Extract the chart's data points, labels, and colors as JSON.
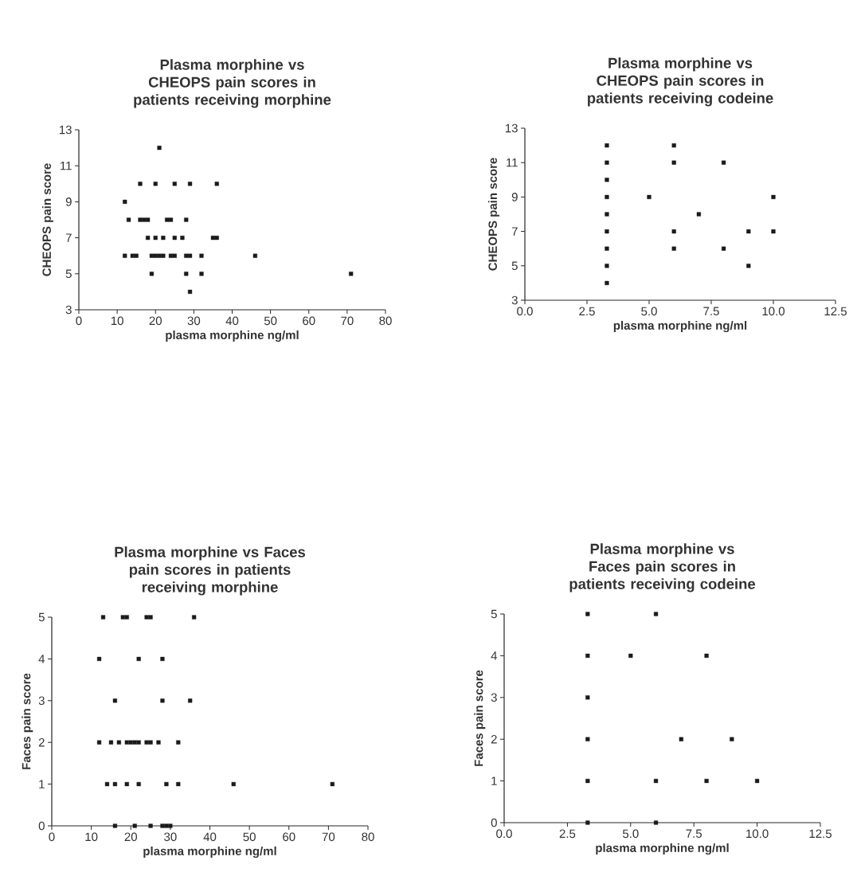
{
  "chart_data": [
    {
      "type": "scatter",
      "title": "Plasma morphine vs CHEOPS pain scores in patients receiving morphine",
      "xlabel": "plasma morphine ng/ml",
      "ylabel": "CHEOPS pain score",
      "marker": "square",
      "color": "#1a1a1a",
      "xlim": [
        0,
        80
      ],
      "ylim": [
        3,
        13
      ],
      "xticks": [
        0,
        10,
        20,
        30,
        40,
        50,
        60,
        70,
        80
      ],
      "yticks": [
        3,
        5,
        7,
        9,
        11,
        13
      ],
      "x": [
        21,
        16,
        20,
        25,
        29,
        36,
        12,
        13,
        16,
        17,
        18,
        23,
        24,
        28,
        18,
        20,
        22,
        25,
        27,
        35,
        36,
        12,
        14,
        15,
        19,
        20,
        21,
        22,
        24,
        25,
        28,
        29,
        32,
        46,
        19,
        28,
        32,
        71,
        29
      ],
      "values": [
        12,
        10,
        10,
        10,
        10,
        10,
        9,
        8,
        8,
        8,
        8,
        8,
        8,
        8,
        7,
        7,
        7,
        7,
        7,
        7,
        7,
        6,
        6,
        6,
        6,
        6,
        6,
        6,
        6,
        6,
        6,
        6,
        6,
        6,
        5,
        5,
        5,
        5,
        4
      ]
    },
    {
      "type": "scatter",
      "title": "Plasma morphine vs CHEOPS pain scores in patients receiving codeine",
      "xlabel": "plasma morphine ng/ml",
      "ylabel": "CHEOPS pain score",
      "marker": "square",
      "color": "#1a1a1a",
      "xlim": [
        0,
        12.5
      ],
      "ylim": [
        3,
        13
      ],
      "xticks": [
        {
          "value": 0,
          "label": "0.0"
        },
        {
          "value": 2.5,
          "label": "2.5"
        },
        {
          "value": 5,
          "label": "5.0"
        },
        {
          "value": 7.5,
          "label": "7.5"
        },
        {
          "value": 10,
          "label": "10.0"
        },
        {
          "value": 12.5,
          "label": "12.5"
        }
      ],
      "yticks": [
        3,
        5,
        7,
        9,
        11,
        13
      ],
      "x": [
        3.3,
        3.3,
        3.3,
        3.3,
        3.3,
        3.3,
        3.3,
        3.3,
        3.3,
        5,
        6,
        6,
        6,
        6,
        7,
        8,
        8,
        9,
        9,
        10,
        10
      ],
      "values": [
        4,
        5,
        6,
        7,
        8,
        9,
        10,
        11,
        12,
        9,
        12,
        11,
        7,
        6,
        8,
        11,
        6,
        7,
        5,
        9,
        7
      ]
    },
    {
      "type": "scatter",
      "title": "Plasma morphine vs Faces pain scores in patients receiving morphine",
      "xlabel": "plasma morphine ng/ml",
      "ylabel": "Faces pain score",
      "marker": "square",
      "color": "#1a1a1a",
      "xlim": [
        0,
        80
      ],
      "ylim": [
        0,
        5
      ],
      "xticks": [
        0,
        10,
        20,
        30,
        40,
        50,
        60,
        70,
        80
      ],
      "yticks": [
        0,
        1,
        2,
        3,
        4,
        5
      ],
      "x": [
        13,
        18,
        19,
        24,
        25,
        36,
        12,
        22,
        28,
        16,
        28,
        35,
        12,
        15,
        17,
        19,
        20,
        21,
        22,
        24,
        25,
        27,
        32,
        14,
        16,
        19,
        22,
        29,
        32,
        46,
        71,
        16,
        21,
        25,
        28,
        29,
        30
      ],
      "values": [
        5,
        5,
        5,
        5,
        5,
        5,
        4,
        4,
        4,
        3,
        3,
        3,
        2,
        2,
        2,
        2,
        2,
        2,
        2,
        2,
        2,
        2,
        2,
        1,
        1,
        1,
        1,
        1,
        1,
        1,
        1,
        0,
        0,
        0,
        0,
        0,
        0
      ]
    },
    {
      "type": "scatter",
      "title": "Plasma morphine vs Faces pain scores in patients receiving codeine",
      "xlabel": "plasma morphine ng/ml",
      "ylabel": "Faces pain score",
      "marker": "square",
      "color": "#1a1a1a",
      "xlim": [
        0,
        12.5
      ],
      "ylim": [
        0,
        5
      ],
      "xticks": [
        {
          "value": 0,
          "label": "0.0"
        },
        {
          "value": 2.5,
          "label": "2.5"
        },
        {
          "value": 5,
          "label": "5.0"
        },
        {
          "value": 7.5,
          "label": "7.5"
        },
        {
          "value": 10,
          "label": "10.0"
        },
        {
          "value": 12.5,
          "label": "12.5"
        }
      ],
      "yticks": [
        0,
        1,
        2,
        3,
        4,
        5
      ],
      "x": [
        3.3,
        6,
        3.3,
        5,
        8,
        3.3,
        3.3,
        7,
        9,
        3.3,
        6,
        8,
        10,
        3.3,
        6
      ],
      "values": [
        5,
        5,
        4,
        4,
        4,
        3,
        2,
        2,
        2,
        1,
        1,
        1,
        1,
        0,
        0
      ]
    }
  ]
}
